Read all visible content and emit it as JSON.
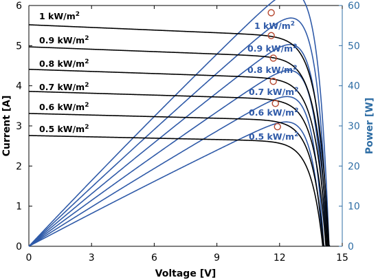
{
  "chart_data": {
    "type": "line",
    "title": "",
    "xlabel": "Voltage [V]",
    "ylabel_left": "Current [A]",
    "ylabel_right": "Power [W]",
    "xlim": [
      0,
      15
    ],
    "ylim_left": [
      0,
      6
    ],
    "ylim_right": [
      0,
      60
    ],
    "x_ticks": [
      0,
      3,
      6,
      9,
      12,
      15
    ],
    "y_left_ticks": [
      0,
      1,
      2,
      3,
      4,
      5,
      6
    ],
    "y_right_ticks": [
      0,
      10,
      20,
      30,
      40,
      50,
      60
    ],
    "grid": false,
    "colors": {
      "current": "#000000",
      "power": "#2f5aa8",
      "right_axis": "#2e6da4",
      "mpp_marker": "#b5472f"
    },
    "current_series": [
      {
        "label": "1 kW/m",
        "isc": 5.52,
        "voc": 14.4
      },
      {
        "label": "0.9 kW/m",
        "isc": 4.97,
        "voc": 14.35
      },
      {
        "label": "0.8 kW/m",
        "isc": 4.41,
        "voc": 14.3
      },
      {
        "label": "0.7 kW/m",
        "isc": 3.86,
        "voc": 14.25
      },
      {
        "label": "0.6 kW/m",
        "isc": 3.31,
        "voc": 14.15
      },
      {
        "label": "0.5 kW/m",
        "isc": 2.76,
        "voc": 14.1
      }
    ],
    "power_series": [
      {
        "label": "1 kW/m",
        "mpp": [
          11.6,
          58.2
        ]
      },
      {
        "label": "0.9 kW/m",
        "mpp": [
          11.6,
          52.5
        ]
      },
      {
        "label": "0.8 kW/m",
        "mpp": [
          11.7,
          46.9
        ]
      },
      {
        "label": "0.7 kW/m",
        "mpp": [
          11.7,
          41.1
        ]
      },
      {
        "label": "0.6 kW/m",
        "mpp": [
          11.8,
          35.6
        ]
      },
      {
        "label": "0.5 kW/m",
        "mpp": [
          11.9,
          29.8
        ]
      }
    ],
    "superscript": "2"
  }
}
